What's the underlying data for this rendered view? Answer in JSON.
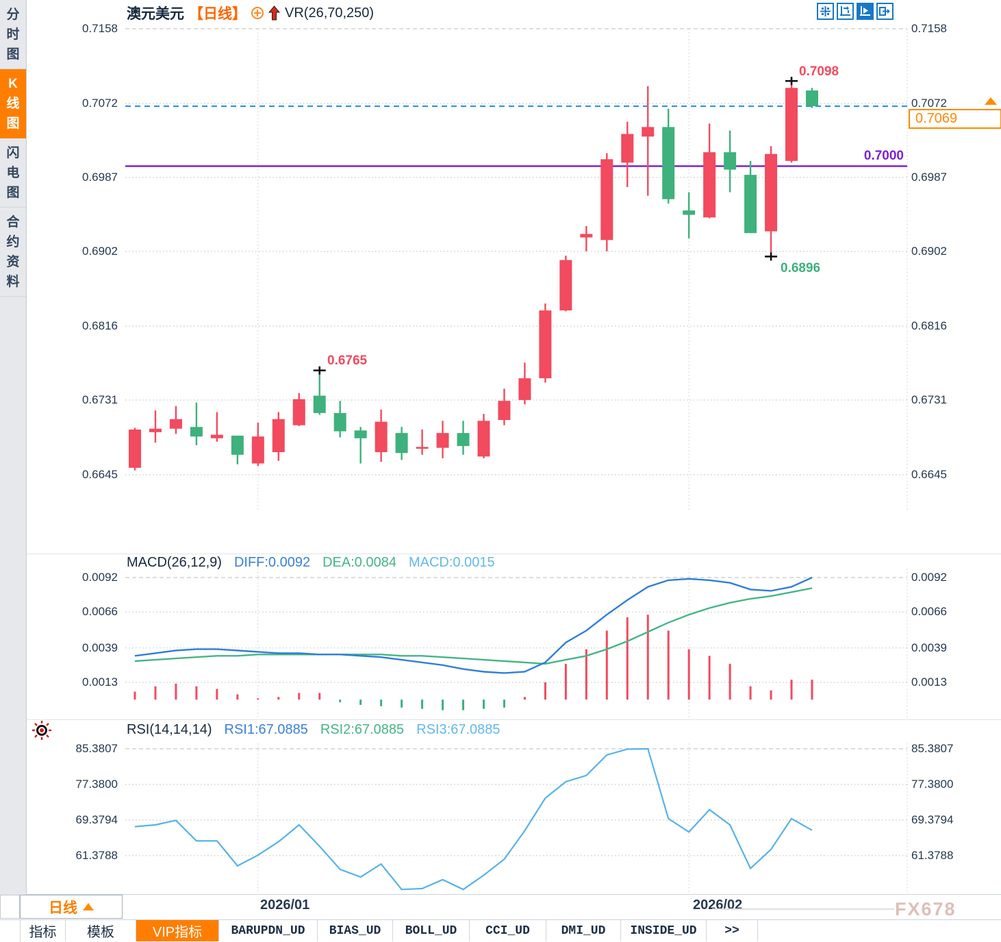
{
  "header": {
    "symbol": "澳元美元",
    "period_tag": "【日线】",
    "indicator": "VR(26,70,250)"
  },
  "toolbar_icons": [
    "move-crosshair-icon",
    "fit-axes-icon",
    "auto-play-axis-icon",
    "pan-exit-icon"
  ],
  "sidebar": {
    "items": [
      {
        "label": "分时图",
        "active": false
      },
      {
        "label": "K线图",
        "active": true
      },
      {
        "label": "闪电图",
        "active": false
      },
      {
        "label": "合约资料",
        "active": false
      }
    ]
  },
  "macd_panel": {
    "title": "MACD(26,12,9)",
    "diff_label": "DIFF:0.0092",
    "dea_label": "DEA:0.0084",
    "macd_label": "MACD:0.0015"
  },
  "rsi_panel": {
    "title": "RSI(14,14,14)",
    "rsi1_label": "RSI1:67.0885",
    "rsi2_label": "RSI2:67.0885",
    "rsi3_label": "RSI3:67.0885"
  },
  "annotations": {
    "marked_high": "0.7098",
    "marked_low": "0.6896",
    "marked_peak": "0.6765",
    "hline_label": "0.7000",
    "current_price": "0.7069"
  },
  "bottom": {
    "period_button": "日线",
    "x_labels": [
      "2026/01",
      "2026/02"
    ],
    "watermark": "FX678",
    "tabs": [
      {
        "label": "指标",
        "active": false,
        "mono": false
      },
      {
        "label": "模板",
        "active": false,
        "mono": false
      },
      {
        "label": "VIP指标",
        "active": true,
        "mono": false
      },
      {
        "label": "BARUPDN_UD",
        "active": false,
        "mono": true
      },
      {
        "label": "BIAS_UD",
        "active": false,
        "mono": true
      },
      {
        "label": "BOLL_UD",
        "active": false,
        "mono": true
      },
      {
        "label": "CCI_UD",
        "active": false,
        "mono": true
      },
      {
        "label": "DMI_UD",
        "active": false,
        "mono": true
      },
      {
        "label": "INSIDE_UD",
        "active": false,
        "mono": true
      },
      {
        "label": ">>",
        "active": false,
        "mono": true
      }
    ]
  },
  "colors": {
    "up_candle": "#f24a5e",
    "down_candle": "#3eb17c",
    "purple_line": "#7a22d8",
    "dashed_price_line": "#2090f0",
    "diff_line": "#2e7fd8",
    "dea_line": "#45b585",
    "rsi_line": "#56b2e8",
    "accent_orange": "#ff7e00",
    "toolbar_blue": "#1878c8",
    "grid": "#d2d2d2",
    "axis_text": "#253850"
  },
  "chart_data": {
    "type": "candlestick",
    "title": "澳元美元 日线 (AUD/USD daily)",
    "price_axis_ticks": [
      0.7158,
      0.7072,
      0.6987,
      0.6902,
      0.6816,
      0.6731,
      0.6645
    ],
    "x_axis": {
      "labels": [
        "2026/01",
        "2026/02"
      ],
      "gridline_candle_indices": [
        6,
        27
      ]
    },
    "candles_ohlc": [
      [
        0.6653,
        0.6699,
        0.665,
        0.6697
      ],
      [
        0.6694,
        0.6719,
        0.6682,
        0.6698
      ],
      [
        0.6698,
        0.6724,
        0.6692,
        0.6709
      ],
      [
        0.67,
        0.6728,
        0.6679,
        0.6689
      ],
      [
        0.6687,
        0.6717,
        0.6683,
        0.6691
      ],
      [
        0.669,
        0.669,
        0.6657,
        0.6668
      ],
      [
        0.6658,
        0.6705,
        0.6655,
        0.6689
      ],
      [
        0.6671,
        0.6717,
        0.6661,
        0.6709
      ],
      [
        0.6702,
        0.6739,
        0.6701,
        0.6732
      ],
      [
        0.6736,
        0.6765,
        0.6714,
        0.6716
      ],
      [
        0.6716,
        0.673,
        0.6688,
        0.6695
      ],
      [
        0.6696,
        0.67,
        0.6658,
        0.6687
      ],
      [
        0.6671,
        0.672,
        0.666,
        0.6706
      ],
      [
        0.6693,
        0.67,
        0.6662,
        0.667
      ],
      [
        0.6675,
        0.6697,
        0.6668,
        0.6677
      ],
      [
        0.6676,
        0.6707,
        0.6664,
        0.6693
      ],
      [
        0.6693,
        0.6707,
        0.6668,
        0.6678
      ],
      [
        0.6666,
        0.6715,
        0.6664,
        0.6707
      ],
      [
        0.6708,
        0.6744,
        0.6702,
        0.673
      ],
      [
        0.6731,
        0.6774,
        0.6726,
        0.6756
      ],
      [
        0.6756,
        0.6842,
        0.6751,
        0.6834
      ],
      [
        0.6834,
        0.6897,
        0.6833,
        0.6892
      ],
      [
        0.6918,
        0.6931,
        0.6902,
        0.6922
      ],
      [
        0.6915,
        0.7015,
        0.6902,
        0.7008
      ],
      [
        0.7004,
        0.7051,
        0.6976,
        0.7037
      ],
      [
        0.7034,
        0.7092,
        0.6966,
        0.7045
      ],
      [
        0.7045,
        0.7066,
        0.6957,
        0.6962
      ],
      [
        0.6949,
        0.697,
        0.6917,
        0.6944
      ],
      [
        0.6941,
        0.7049,
        0.694,
        0.7016
      ],
      [
        0.7016,
        0.7041,
        0.697,
        0.6996
      ],
      [
        0.699,
        0.7006,
        0.6923,
        0.6923
      ],
      [
        0.6925,
        0.7023,
        0.6896,
        0.7014
      ],
      [
        0.7006,
        0.7098,
        0.7004,
        0.709
      ],
      [
        0.7087,
        0.709,
        0.7067,
        0.7069
      ]
    ],
    "overlays": {
      "horizontal_line": 0.7,
      "current_price": 0.7069,
      "marked_high": {
        "index": 32,
        "value": 0.7098
      },
      "marked_low": {
        "index": 31,
        "value": 0.6896
      },
      "marked_peak": {
        "index": 9,
        "value": 0.6765
      }
    },
    "macd": {
      "params": [
        26,
        12,
        9
      ],
      "axis_ticks": [
        0.0092,
        0.0066,
        0.0039,
        0.0013
      ],
      "diff": [
        0.0033,
        0.0035,
        0.0037,
        0.0038,
        0.0038,
        0.0037,
        0.0036,
        0.0035,
        0.0035,
        0.0034,
        0.0034,
        0.0033,
        0.0032,
        0.003,
        0.0028,
        0.0026,
        0.0023,
        0.0021,
        0.002,
        0.0021,
        0.0028,
        0.0043,
        0.0052,
        0.0064,
        0.0075,
        0.0085,
        0.009,
        0.0091,
        0.009,
        0.0088,
        0.0083,
        0.0082,
        0.0085,
        0.0092
      ],
      "dea": [
        0.0029,
        0.003,
        0.0031,
        0.0032,
        0.0033,
        0.0033,
        0.0034,
        0.0034,
        0.0034,
        0.0034,
        0.0034,
        0.0034,
        0.0034,
        0.0033,
        0.0033,
        0.0032,
        0.0031,
        0.003,
        0.0029,
        0.0028,
        0.0027,
        0.003,
        0.0033,
        0.0038,
        0.0044,
        0.0051,
        0.0058,
        0.0064,
        0.0069,
        0.0073,
        0.0076,
        0.0078,
        0.0081,
        0.0084
      ],
      "hist": [
        0.0006,
        0.001,
        0.0012,
        0.001,
        0.0008,
        0.0004,
        0.0001,
        0.0002,
        0.0005,
        0.0005,
        -0.0002,
        -0.0004,
        -0.0005,
        -0.0006,
        -0.0007,
        -0.0008,
        -0.0008,
        -0.0007,
        -0.0006,
        0.0002,
        0.0013,
        0.0027,
        0.0038,
        0.0052,
        0.0062,
        0.0064,
        0.0052,
        0.0038,
        0.0033,
        0.0027,
        0.001,
        0.0007,
        0.0015,
        0.0015
      ]
    },
    "rsi": {
      "params": [
        14,
        14,
        14
      ],
      "axis_ticks": [
        85.3807,
        77.38,
        69.3794,
        61.3788
      ],
      "values": [
        67.9,
        68.3,
        69.3,
        64.7,
        64.7,
        59.1,
        61.5,
        64.5,
        68.3,
        63.5,
        58.3,
        56.6,
        59.5,
        53.8,
        54.0,
        56.0,
        53.8,
        57.0,
        60.6,
        67.0,
        74.3,
        78.0,
        79.4,
        84.0,
        85.3,
        85.38,
        69.7,
        66.7,
        71.7,
        68.3,
        58.5,
        62.8,
        69.7,
        67.09
      ]
    }
  }
}
